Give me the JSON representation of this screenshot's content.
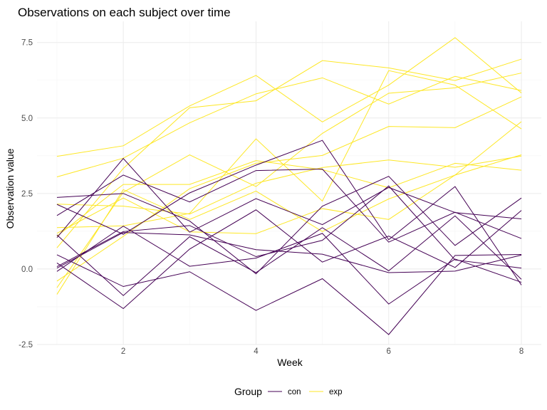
{
  "chart_data": {
    "type": "line",
    "title": "Observations on each subject over time",
    "xlabel": "Week",
    "ylabel": "Observation value",
    "xlim": [
      0.7,
      8.3
    ],
    "ylim": [
      -2.5,
      8.2
    ],
    "x_ticks": [
      2,
      4,
      6,
      8
    ],
    "x_tick_labels": [
      "2",
      "4",
      "6",
      "8"
    ],
    "y_ticks": [
      -2.5,
      0,
      2.5,
      5,
      7.5
    ],
    "y_tick_labels": [
      "-2.5",
      "0.0",
      "2.5",
      "5.0",
      "7.5"
    ],
    "grid": true,
    "legend_position": "bottom",
    "legend_title": "Group",
    "groups": [
      {
        "name": "con",
        "color": "#440154"
      },
      {
        "name": "exp",
        "color": "#fde725"
      }
    ],
    "x": [
      1,
      2,
      3,
      4,
      5,
      6,
      7,
      8
    ],
    "series": [
      {
        "group": "con",
        "values": [
          0.2,
          -1.31,
          0.66,
          1.96,
          0.23,
          1.09,
          0.05,
          1.94
        ]
      },
      {
        "group": "con",
        "values": [
          1.13,
          -0.88,
          1.07,
          -0.12,
          1.37,
          -0.06,
          1.76,
          -0.34
        ]
      },
      {
        "group": "con",
        "values": [
          1.77,
          3.11,
          2.22,
          3.26,
          3.31,
          0.89,
          1.88,
          1.01
        ]
      },
      {
        "group": "con",
        "values": [
          1.04,
          3.66,
          1.22,
          2.33,
          1.47,
          2.7,
          1.87,
          1.66
        ]
      },
      {
        "group": "con",
        "values": [
          0.47,
          -0.58,
          -0.09,
          -1.37,
          -0.32,
          -2.17,
          0.45,
          0.48
        ]
      },
      {
        "group": "con",
        "values": [
          2.37,
          2.5,
          1.59,
          -0.16,
          2.08,
          3.07,
          0.78,
          2.35
        ]
      },
      {
        "group": "con",
        "values": [
          0.03,
          1.21,
          1.13,
          0.64,
          0.49,
          -0.12,
          -0.07,
          0.46
        ]
      },
      {
        "group": "con",
        "values": [
          -0.08,
          1.42,
          0.09,
          0.36,
          1.18,
          -1.16,
          0.33,
          -0.44
        ]
      },
      {
        "group": "con",
        "values": [
          0.08,
          1.24,
          1.44,
          0.41,
          0.95,
          2.75,
          0.3,
          0.03
        ]
      },
      {
        "group": "con",
        "values": [
          2.14,
          1.15,
          2.52,
          3.44,
          4.26,
          0.97,
          2.73,
          -0.53
        ]
      },
      {
        "group": "exp",
        "values": [
          3.05,
          3.67,
          4.84,
          5.8,
          6.33,
          5.46,
          6.38,
          5.91
        ]
      },
      {
        "group": "exp",
        "values": [
          -0.84,
          2.63,
          1.64,
          2.58,
          1.24,
          2.32,
          3.11,
          3.78
        ]
      },
      {
        "group": "exp",
        "values": [
          2.15,
          2.08,
          1.82,
          2.84,
          3.36,
          3.61,
          3.37,
          3.74
        ]
      },
      {
        "group": "exp",
        "values": [
          -0.62,
          2.54,
          3.78,
          2.73,
          4.49,
          5.82,
          6.0,
          6.49
        ]
      },
      {
        "group": "exp",
        "values": [
          0.7,
          3.33,
          5.34,
          5.57,
          6.9,
          6.66,
          6.24,
          6.95
        ]
      },
      {
        "group": "exp",
        "values": [
          3.73,
          4.08,
          5.4,
          6.41,
          4.87,
          6.09,
          7.66,
          5.83
        ]
      },
      {
        "group": "exp",
        "values": [
          1.18,
          2.35,
          1.23,
          1.17,
          2.0,
          1.64,
          3.11,
          4.88
        ]
      },
      {
        "group": "exp",
        "values": [
          1.37,
          1.43,
          1.84,
          4.31,
          2.25,
          6.57,
          6.09,
          4.64
        ]
      },
      {
        "group": "exp",
        "values": [
          -0.4,
          1.08,
          2.66,
          3.5,
          3.76,
          4.72,
          4.68,
          5.7
        ]
      },
      {
        "group": "exp",
        "values": [
          1.09,
          2.8,
          2.8,
          3.59,
          3.29,
          2.69,
          3.5,
          3.27
        ]
      }
    ]
  }
}
